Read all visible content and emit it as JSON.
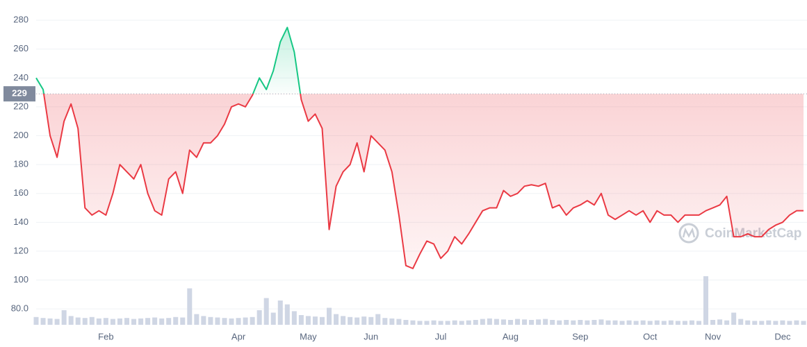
{
  "chart_data": {
    "type": "line",
    "values": [
      240,
      232,
      200,
      185,
      210,
      222,
      205,
      150,
      145,
      148,
      145,
      160,
      180,
      175,
      170,
      180,
      160,
      148,
      145,
      170,
      175,
      160,
      190,
      185,
      195,
      195,
      200,
      208,
      220,
      222,
      220,
      228,
      240,
      232,
      245,
      265,
      275,
      258,
      225,
      210,
      215,
      205,
      135,
      165,
      175,
      180,
      195,
      175,
      200,
      195,
      190,
      175,
      145,
      110,
      108,
      118,
      127,
      125,
      115,
      120,
      130,
      125,
      132,
      140,
      148,
      150,
      150,
      162,
      158,
      160,
      165,
      166,
      165,
      167,
      150,
      152,
      145,
      150,
      152,
      155,
      152,
      160,
      145,
      142,
      145,
      148,
      145,
      148,
      140,
      148,
      145,
      145,
      140,
      145,
      145,
      145,
      148,
      150,
      152,
      158,
      130,
      130,
      132,
      130,
      130,
      135,
      138,
      140,
      145,
      148,
      148
    ],
    "categories": [
      null,
      null,
      null,
      null,
      null,
      null,
      null,
      null,
      null,
      null,
      "Feb",
      null,
      null,
      null,
      null,
      null,
      null,
      null,
      null,
      null,
      null,
      null,
      null,
      null,
      null,
      null,
      null,
      null,
      null,
      "Apr",
      null,
      null,
      null,
      null,
      null,
      null,
      null,
      null,
      null,
      "May",
      null,
      null,
      null,
      null,
      null,
      null,
      null,
      null,
      "Jun",
      null,
      null,
      null,
      null,
      null,
      null,
      null,
      null,
      null,
      "Jul",
      null,
      null,
      null,
      null,
      null,
      null,
      null,
      null,
      null,
      "Aug",
      null,
      null,
      null,
      null,
      null,
      null,
      null,
      null,
      null,
      "Sep",
      null,
      null,
      null,
      null,
      null,
      null,
      null,
      null,
      null,
      "Oct",
      null,
      null,
      null,
      null,
      null,
      null,
      null,
      null,
      "Nov",
      null,
      null,
      null,
      null,
      null,
      null,
      null,
      null,
      null,
      "Dec",
      null,
      null,
      null
    ],
    "volume": [
      16,
      14,
      13,
      12,
      30,
      18,
      15,
      14,
      16,
      13,
      14,
      12,
      13,
      14,
      12,
      13,
      14,
      15,
      13,
      14,
      16,
      15,
      75,
      22,
      18,
      16,
      15,
      14,
      13,
      14,
      15,
      16,
      30,
      55,
      25,
      50,
      42,
      28,
      20,
      18,
      17,
      16,
      35,
      22,
      18,
      16,
      15,
      17,
      16,
      22,
      14,
      13,
      12,
      10,
      9,
      8,
      8,
      9,
      8,
      8,
      9,
      8,
      9,
      10,
      12,
      13,
      12,
      11,
      10,
      12,
      11,
      10,
      11,
      12,
      10,
      9,
      10,
      9,
      10,
      9,
      10,
      11,
      9,
      9,
      8,
      9,
      8,
      9,
      8,
      9,
      8,
      9,
      8,
      8,
      9,
      8,
      100,
      10,
      11,
      9,
      25,
      12,
      9,
      8,
      8,
      9,
      8,
      9,
      8,
      9,
      8
    ],
    "ylim": [
      69,
      294
    ],
    "yticks": [
      {
        "value": 80,
        "label": "80.0"
      },
      100,
      120,
      140,
      160,
      180,
      200,
      220,
      240,
      260,
      280
    ],
    "y2lim": [
      0,
      100
    ],
    "reference": 229,
    "color_up": "#16c784",
    "color_down": "#ea3943",
    "volume_color": "#cfd6e4",
    "grid": true,
    "watermark": "CoinMarketCap"
  }
}
